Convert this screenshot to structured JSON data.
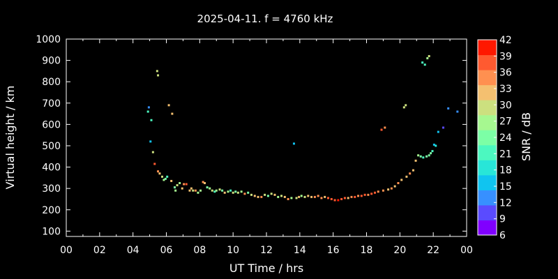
{
  "chart_data": {
    "type": "scatter",
    "title": "2025-04-11. f = 4760 kHz",
    "xlabel": "UT Time / hrs",
    "ylabel": "Virtual height / km",
    "xlim": [
      0,
      24
    ],
    "ylim": [
      75,
      1000
    ],
    "xticks": [
      "00",
      "02",
      "04",
      "06",
      "08",
      "10",
      "12",
      "14",
      "16",
      "18",
      "20",
      "22",
      "00"
    ],
    "yticks": [
      100,
      200,
      300,
      400,
      500,
      600,
      700,
      800,
      900,
      1000
    ],
    "colorbar": {
      "label": "SNR / dB",
      "min": 6,
      "max": 42,
      "ticks": [
        6,
        9,
        12,
        15,
        18,
        21,
        24,
        27,
        30,
        33,
        36,
        39,
        42
      ],
      "colors": [
        "#8000ff",
        "#5a4bff",
        "#3790ff",
        "#10c4f0",
        "#28e6d8",
        "#4cf8c0",
        "#7cffa6",
        "#a6f890",
        "#cce07f",
        "#f4c070",
        "#ff9050",
        "#ff5a30",
        "#ff1800"
      ]
    },
    "grid": false,
    "legend": "colorbar-right",
    "series": [
      {
        "points": [
          [
            4.95,
            680,
            12
          ],
          [
            4.9,
            660,
            20
          ],
          [
            5.05,
            520,
            16
          ],
          [
            5.1,
            620,
            22
          ],
          [
            5.2,
            470,
            30
          ],
          [
            5.3,
            415,
            38
          ],
          [
            5.45,
            850,
            29
          ],
          [
            5.5,
            830,
            31
          ],
          [
            5.5,
            380,
            36
          ],
          [
            5.6,
            370,
            33
          ],
          [
            5.75,
            355,
            30
          ],
          [
            5.85,
            340,
            26
          ],
          [
            5.95,
            345,
            24
          ],
          [
            6.05,
            355,
            22
          ],
          [
            6.15,
            690,
            33
          ],
          [
            6.3,
            335,
            34
          ],
          [
            6.35,
            650,
            32
          ],
          [
            6.5,
            305,
            25
          ],
          [
            6.55,
            290,
            28
          ],
          [
            6.65,
            315,
            30
          ],
          [
            6.8,
            325,
            27
          ],
          [
            6.95,
            300,
            33
          ],
          [
            7.05,
            320,
            36
          ],
          [
            7.2,
            320,
            38
          ],
          [
            7.4,
            290,
            34
          ],
          [
            7.5,
            300,
            33
          ],
          [
            7.6,
            290,
            31
          ],
          [
            7.75,
            290,
            35
          ],
          [
            7.9,
            280,
            26
          ],
          [
            8.05,
            290,
            28
          ],
          [
            8.2,
            330,
            37
          ],
          [
            8.3,
            325,
            33
          ],
          [
            8.45,
            305,
            25
          ],
          [
            8.6,
            300,
            28
          ],
          [
            8.75,
            290,
            30
          ],
          [
            8.9,
            285,
            22
          ],
          [
            9.0,
            290,
            26
          ],
          [
            9.2,
            295,
            30
          ],
          [
            9.35,
            290,
            24
          ],
          [
            9.5,
            280,
            33
          ],
          [
            9.7,
            285,
            27
          ],
          [
            9.85,
            290,
            22
          ],
          [
            10.0,
            280,
            29
          ],
          [
            10.15,
            285,
            25
          ],
          [
            10.3,
            280,
            31
          ],
          [
            10.5,
            285,
            26
          ],
          [
            10.7,
            275,
            35
          ],
          [
            10.9,
            280,
            24
          ],
          [
            11.1,
            270,
            30
          ],
          [
            11.3,
            265,
            33
          ],
          [
            11.5,
            260,
            34
          ],
          [
            11.7,
            260,
            36
          ],
          [
            11.9,
            270,
            30
          ],
          [
            12.1,
            265,
            24
          ],
          [
            12.3,
            275,
            29
          ],
          [
            12.5,
            270,
            33
          ],
          [
            12.7,
            260,
            27
          ],
          [
            12.9,
            265,
            30
          ],
          [
            13.1,
            260,
            34
          ],
          [
            13.3,
            250,
            36
          ],
          [
            13.5,
            255,
            28
          ],
          [
            13.65,
            510,
            15
          ],
          [
            13.8,
            255,
            31
          ],
          [
            13.95,
            260,
            33
          ],
          [
            14.1,
            265,
            26
          ],
          [
            14.3,
            260,
            30
          ],
          [
            14.5,
            265,
            34
          ],
          [
            14.7,
            260,
            32
          ],
          [
            14.9,
            260,
            36
          ],
          [
            15.1,
            265,
            35
          ],
          [
            15.3,
            255,
            37
          ],
          [
            15.5,
            260,
            34
          ],
          [
            15.7,
            255,
            38
          ],
          [
            15.9,
            250,
            39
          ],
          [
            16.1,
            245,
            40
          ],
          [
            16.3,
            245,
            41
          ],
          [
            16.5,
            250,
            40
          ],
          [
            16.7,
            255,
            38
          ],
          [
            16.9,
            255,
            33
          ],
          [
            17.1,
            260,
            36
          ],
          [
            17.3,
            260,
            39
          ],
          [
            17.5,
            265,
            37
          ],
          [
            17.7,
            265,
            40
          ],
          [
            17.9,
            270,
            38
          ],
          [
            18.1,
            270,
            36
          ],
          [
            18.3,
            275,
            38
          ],
          [
            18.5,
            280,
            39
          ],
          [
            18.7,
            285,
            37
          ],
          [
            18.9,
            575,
            38
          ],
          [
            19.1,
            585,
            37
          ],
          [
            19.0,
            290,
            36
          ],
          [
            19.3,
            295,
            33
          ],
          [
            19.5,
            300,
            35
          ],
          [
            19.7,
            310,
            33
          ],
          [
            19.9,
            325,
            36
          ],
          [
            20.1,
            340,
            34
          ],
          [
            20.25,
            680,
            30
          ],
          [
            20.35,
            690,
            31
          ],
          [
            20.4,
            355,
            33
          ],
          [
            20.6,
            370,
            36
          ],
          [
            20.8,
            385,
            33
          ],
          [
            20.95,
            430,
            32
          ],
          [
            21.1,
            455,
            27
          ],
          [
            21.25,
            450,
            24
          ],
          [
            21.4,
            445,
            22
          ],
          [
            21.6,
            450,
            25
          ],
          [
            21.75,
            455,
            23
          ],
          [
            21.35,
            890,
            20
          ],
          [
            21.5,
            880,
            22
          ],
          [
            21.65,
            910,
            27
          ],
          [
            21.75,
            920,
            29
          ],
          [
            21.85,
            465,
            24
          ],
          [
            21.95,
            475,
            21
          ],
          [
            22.05,
            505,
            15
          ],
          [
            22.15,
            500,
            17
          ],
          [
            22.3,
            565,
            14
          ],
          [
            22.6,
            585,
            10
          ],
          [
            22.9,
            675,
            11
          ],
          [
            23.45,
            660,
            12
          ]
        ]
      }
    ]
  }
}
